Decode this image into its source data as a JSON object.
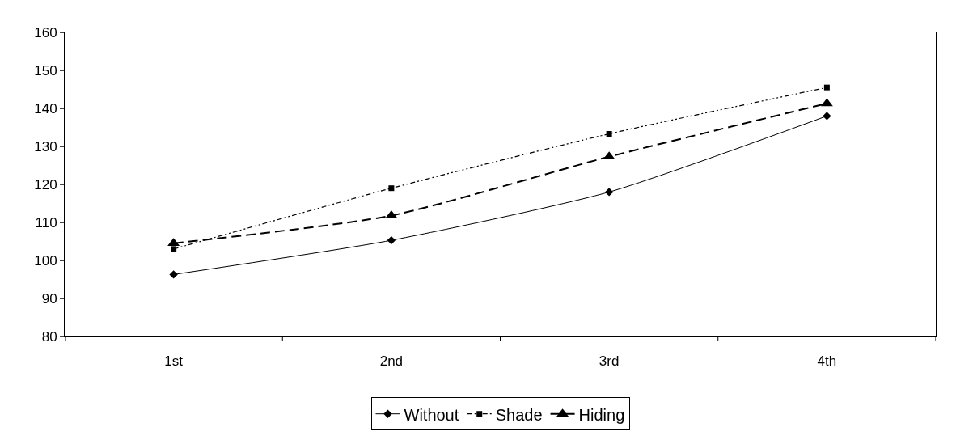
{
  "chart_data": {
    "type": "line",
    "categories": [
      "1st",
      "2nd",
      "3rd",
      "4th"
    ],
    "series": [
      {
        "name": "Without",
        "color": "#000000",
        "values": [
          96.3,
          105.3,
          118,
          138
        ],
        "marker": "diamond",
        "line_style": "solid"
      },
      {
        "name": "Shade",
        "color": "#000000",
        "values": [
          103,
          119,
          133.3,
          145.5
        ],
        "marker": "square",
        "line_style": "dotted"
      },
      {
        "name": "Hiding",
        "color": "#000000",
        "values": [
          104.5,
          111.8,
          127.3,
          141.3
        ],
        "marker": "triangle",
        "line_style": "dashed"
      }
    ],
    "ylim": [
      80,
      160
    ],
    "yticks": [
      80,
      90,
      100,
      110,
      120,
      130,
      140,
      150,
      160
    ],
    "legend": "bottom"
  }
}
